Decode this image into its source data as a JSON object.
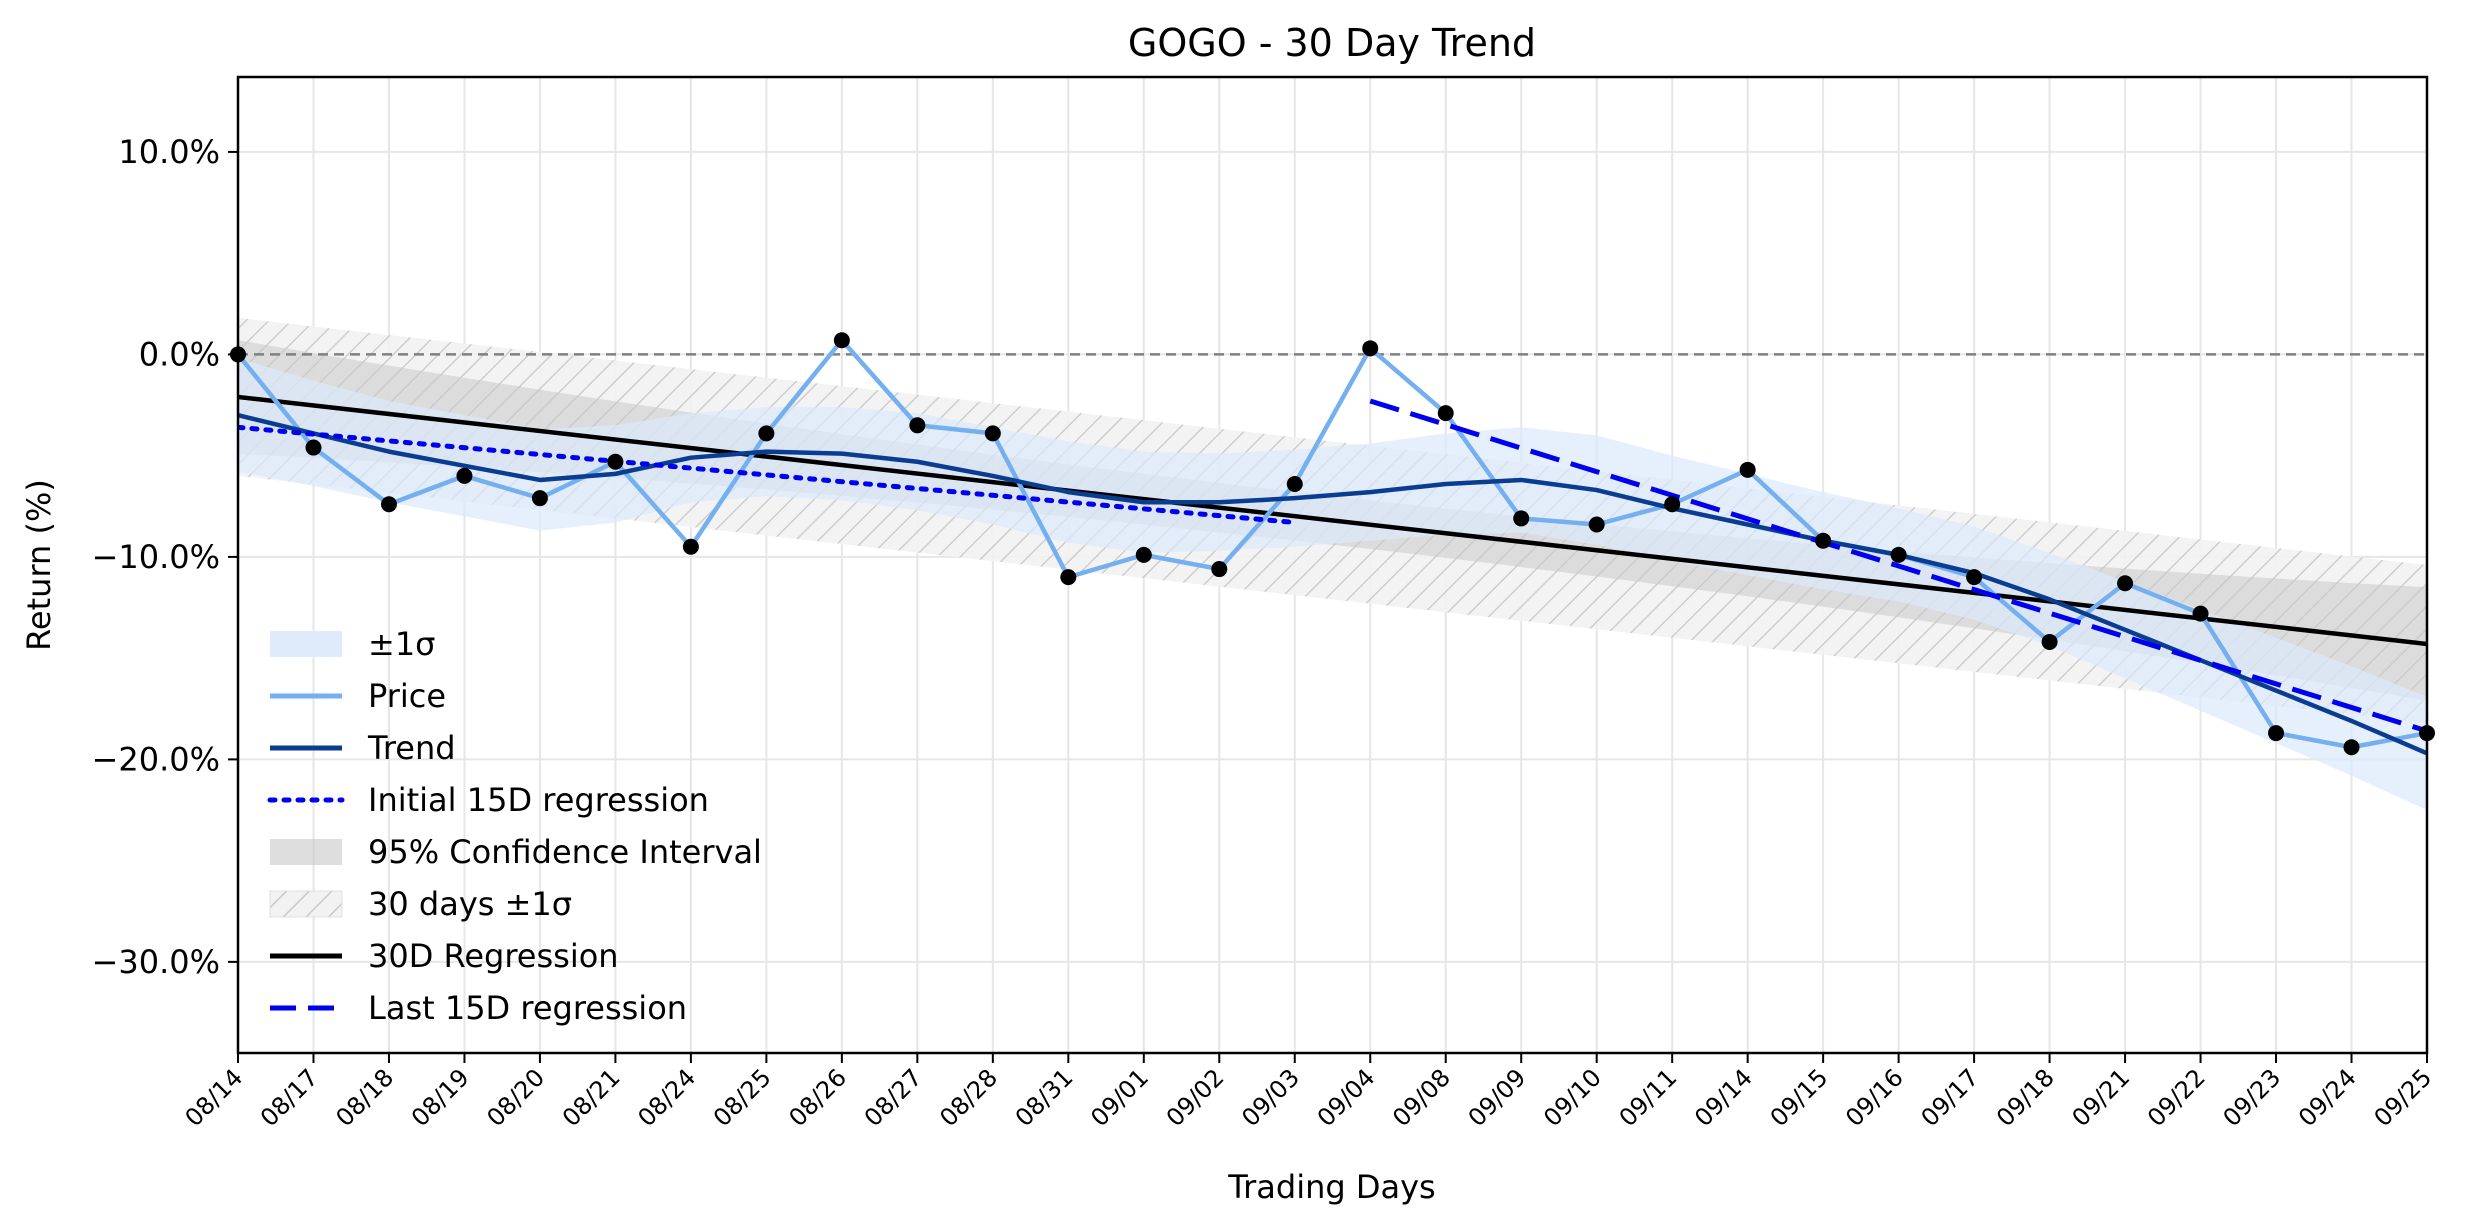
{
  "chart_data": {
    "type": "line",
    "title": "GOGO - 30 Day Trend",
    "xlabel": "Trading Days",
    "ylabel": "Return (%)",
    "ylim": [
      -34.5,
      13.7
    ],
    "yticks": [
      10,
      0,
      -10,
      -20,
      -30
    ],
    "ytick_labels": [
      "10.0%",
      "0.0%",
      "−10.0%",
      "−20.0%",
      "−30.0%"
    ],
    "categories": [
      "08/14",
      "08/17",
      "08/18",
      "08/19",
      "08/20",
      "08/21",
      "08/24",
      "08/25",
      "08/26",
      "08/27",
      "08/28",
      "08/31",
      "09/01",
      "09/02",
      "09/03",
      "09/04",
      "09/08",
      "09/09",
      "09/10",
      "09/11",
      "09/14",
      "09/15",
      "09/16",
      "09/17",
      "09/18",
      "09/21",
      "09/22",
      "09/23",
      "09/24",
      "09/25"
    ],
    "series": [
      {
        "name": "Price",
        "color": "#74afef",
        "values": [
          0.0,
          -4.6,
          -7.4,
          -6.0,
          -7.1,
          -5.3,
          -9.5,
          -3.9,
          0.7,
          -3.5,
          -3.9,
          -11.0,
          -9.9,
          -10.6,
          -6.4,
          0.3,
          -2.9,
          -8.1,
          -8.4,
          -7.4,
          -5.7,
          -9.2,
          -9.9,
          -11.0,
          -14.2,
          -11.3,
          -12.8,
          -18.7,
          -19.4,
          -18.7
        ]
      },
      {
        "name": "Trend",
        "color": "#0a3d91",
        "values": [
          -3.0,
          -3.9,
          -4.8,
          -5.5,
          -6.2,
          -5.9,
          -5.1,
          -4.8,
          -4.9,
          -5.3,
          -6.0,
          -6.8,
          -7.3,
          -7.3,
          -7.1,
          -6.8,
          -6.4,
          -6.2,
          -6.7,
          -7.6,
          -8.4,
          -9.2,
          -9.9,
          -10.8,
          -12.1,
          -13.6,
          -15.1,
          -16.6,
          -18.1,
          -19.7
        ]
      },
      {
        "name": "Initial 15D regression",
        "color": "#0000ee",
        "x_range": [
          0,
          14
        ],
        "values_at_range": [
          -3.6,
          -8.3
        ]
      },
      {
        "name": "Last 15D regression",
        "color": "#0000ee",
        "x_range": [
          15,
          29
        ],
        "values_at_range": [
          -2.3,
          -18.6
        ]
      },
      {
        "name": "30D Regression",
        "color": "#000000",
        "x_range": [
          0,
          29
        ],
        "values_at_range": [
          -2.1,
          -14.3
        ]
      }
    ],
    "bands": [
      {
        "name": "±1σ",
        "color": "#dce9fb",
        "around": "Trend",
        "half_width": [
          2.8,
          2.6,
          2.5,
          2.5,
          2.5,
          2.4,
          2.2,
          2.2,
          2.3,
          2.4,
          2.4,
          2.5,
          2.5,
          2.4,
          2.4,
          2.4,
          2.5,
          2.6,
          2.7,
          2.6,
          2.5,
          2.4,
          2.3,
          2.3,
          2.3,
          2.4,
          2.5,
          2.6,
          2.7,
          2.8
        ]
      },
      {
        "name": "95% Confidence Interval",
        "color": "#c8c8c8",
        "around": "30D Regression",
        "half_width_start": 2.8,
        "half_width_mid": 1.2,
        "half_width_end": 2.8
      },
      {
        "name": "30 days ±1σ",
        "color": "#d0d0d0",
        "around": "30D Regression",
        "half_width": 3.9,
        "hatch": true
      }
    ],
    "reference_line": {
      "y": 0,
      "color": "#808080",
      "style": "dashed"
    },
    "grid": true,
    "legend": {
      "position": "lower-left",
      "entries": [
        "±1σ",
        "Price",
        "Trend",
        "Initial 15D regression",
        "95% Confidence Interval",
        "30 days ±1σ",
        "30D Regression",
        "Last 15D regression"
      ]
    }
  }
}
